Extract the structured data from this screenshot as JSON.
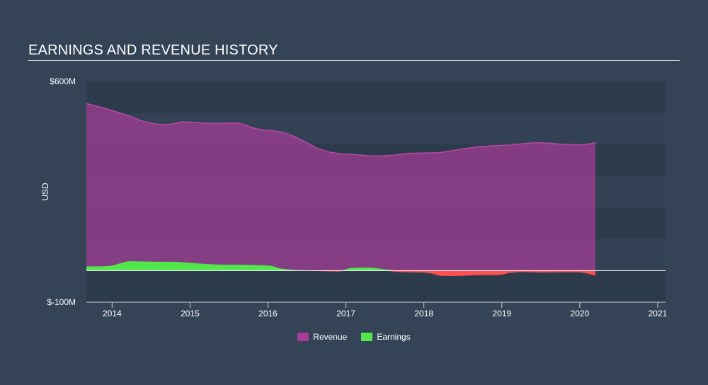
{
  "page": {
    "title": "EARNINGS AND REVENUE HISTORY"
  },
  "chart_data": {
    "type": "area",
    "title": "EARNINGS AND REVENUE HISTORY",
    "ylabel": "USD",
    "xlabel": "",
    "ylim": [
      -100,
      600
    ],
    "xlim": [
      2013.67,
      2021.1
    ],
    "y_tick_labels": {
      "top": "$600M",
      "bottom": "$-100M"
    },
    "x_ticks": [
      2014,
      2015,
      2016,
      2017,
      2018,
      2019,
      2020,
      2021
    ],
    "x_tick_labels": [
      "2014",
      "2015",
      "2016",
      "2017",
      "2018",
      "2019",
      "2020",
      "2021"
    ],
    "grid": "horizontal bands",
    "legend_position": "bottom",
    "series": [
      {
        "name": "Revenue",
        "color": "#a53d96",
        "x": [
          2013.67,
          2013.9,
          2014.1,
          2014.25,
          2014.4,
          2014.55,
          2014.7,
          2014.8,
          2014.92,
          2015.05,
          2015.2,
          2015.4,
          2015.6,
          2015.7,
          2015.8,
          2015.92,
          2016.05,
          2016.2,
          2016.35,
          2016.5,
          2016.65,
          2016.8,
          2016.95,
          2017.1,
          2017.25,
          2017.4,
          2017.6,
          2017.8,
          2018.0,
          2018.2,
          2018.35,
          2018.5,
          2018.7,
          2018.9,
          2019.1,
          2019.3,
          2019.45,
          2019.6,
          2019.8,
          2020.0,
          2020.1,
          2020.2
        ],
        "values": [
          530,
          515,
          500,
          488,
          473,
          465,
          463,
          466,
          472,
          470,
          467,
          467,
          468,
          463,
          453,
          446,
          444,
          438,
          424,
          405,
          386,
          375,
          370,
          368,
          365,
          363,
          366,
          372,
          373,
          374,
          380,
          386,
          393,
          396,
          398,
          403,
          406,
          404,
          400,
          399,
          401,
          406
        ]
      },
      {
        "name": "Earnings",
        "color": "#52e84d",
        "negative_color": "#ff4f4f",
        "x": [
          2013.67,
          2013.9,
          2014.0,
          2014.1,
          2014.2,
          2014.4,
          2014.6,
          2014.8,
          2015.0,
          2015.2,
          2015.4,
          2015.6,
          2015.8,
          2015.95,
          2016.05,
          2016.15,
          2016.3,
          2016.5,
          2016.7,
          2016.9,
          2016.95,
          2017.05,
          2017.2,
          2017.35,
          2017.5,
          2017.65,
          2017.8,
          2018.0,
          2018.1,
          2018.2,
          2018.35,
          2018.5,
          2018.7,
          2018.9,
          2019.0,
          2019.1,
          2019.25,
          2019.4,
          2019.5,
          2019.7,
          2019.9,
          2020.0,
          2020.1,
          2020.2
        ],
        "values": [
          13,
          14,
          16,
          23,
          30,
          29,
          28,
          28,
          25,
          21,
          19,
          19,
          18,
          17,
          15,
          7,
          3,
          0,
          -2,
          -3,
          -2,
          8,
          10,
          9,
          4,
          -4,
          -5,
          -6,
          -9,
          -16,
          -17,
          -16,
          -14,
          -14,
          -13,
          -7,
          -4,
          -5,
          -6,
          -5,
          -5,
          -5,
          -9,
          -16
        ]
      }
    ]
  }
}
